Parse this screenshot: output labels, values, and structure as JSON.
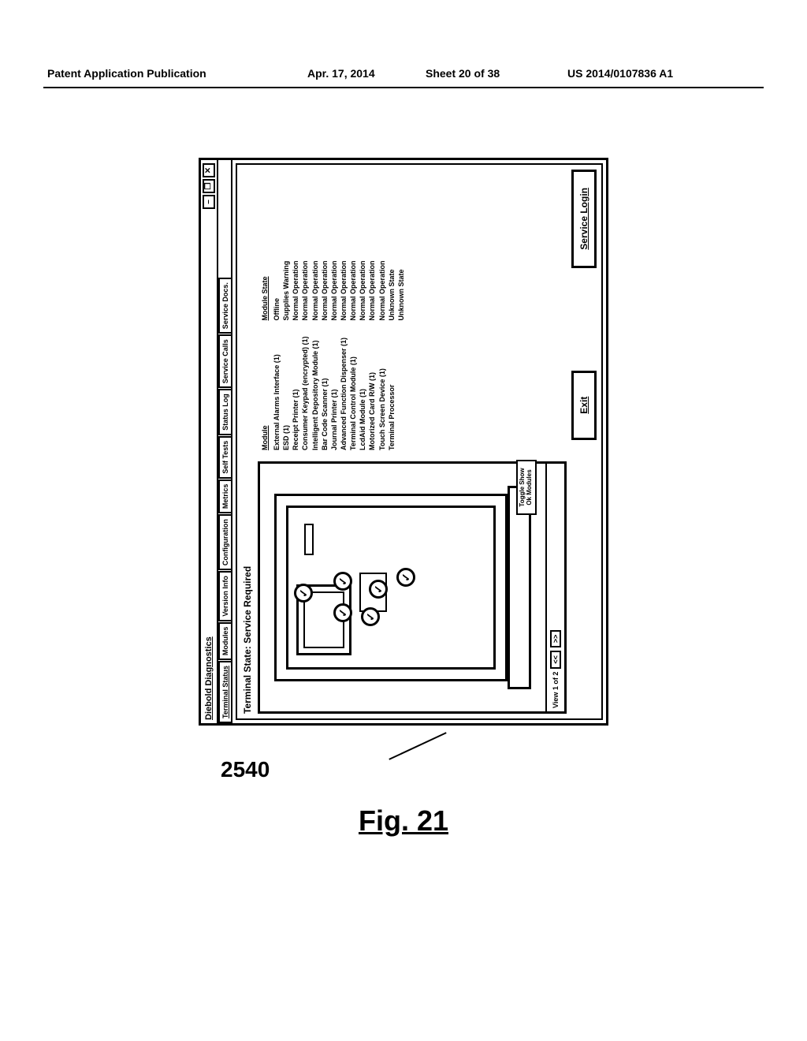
{
  "header": {
    "publication": "Patent Application Publication",
    "date": "Apr. 17, 2014",
    "sheet": "Sheet 20 of 38",
    "pubno": "US 2014/0107836 A1"
  },
  "window": {
    "title": "Diebold Diagnostics",
    "minimize": "–",
    "maximize": "❐",
    "close": "✕"
  },
  "tabs": [
    "Terminal Status",
    "Modules",
    "Version Info",
    "Configuration",
    "Metrics",
    "Self Tests",
    "Status Log",
    "Service Calls",
    "Service Docs."
  ],
  "terminal_state": "Terminal State: Service Required",
  "view_nav": {
    "label": "View 1 of 2",
    "prev": "<<",
    "next": ">>"
  },
  "toggle": "Toggle Show Ok Modules",
  "module_table": {
    "headers": {
      "module": "Module",
      "state": "Module State"
    },
    "rows": [
      {
        "module": "External Alarms Interface (1)",
        "state": "Offline"
      },
      {
        "module": "ESD (1)",
        "state": "Supplies Warning"
      },
      {
        "module": "Receipt Printer (1)",
        "state": "Normal Operation"
      },
      {
        "module": "Consumer Keypad (encrypted) (1)",
        "state": "Normal Operation"
      },
      {
        "module": "Intelligent Depository Module (1)",
        "state": "Normal Operation"
      },
      {
        "module": "Bar Code Scanner (1)",
        "state": "Normal Operation"
      },
      {
        "module": "Journal Printer (1)",
        "state": "Normal Operation"
      },
      {
        "module": "Advanced Function Dispenser (1)",
        "state": "Normal Operation"
      },
      {
        "module": "Terminal Control Module (1)",
        "state": "Normal Operation"
      },
      {
        "module": "LcdAid Module (1)",
        "state": "Normal Operation"
      },
      {
        "module": "Motorized Card R/W (1)",
        "state": "Normal Operation"
      },
      {
        "module": "Touch Screen Device (1)",
        "state": "Normal Operation"
      },
      {
        "module": "Terminal Processor",
        "state": "Unknown State"
      },
      {
        "module": "",
        "state": "Unknown State"
      }
    ]
  },
  "buttons": {
    "exit": "Exit",
    "service_login": "Service Login"
  },
  "callout": "2540",
  "figure": "Fig. 21"
}
